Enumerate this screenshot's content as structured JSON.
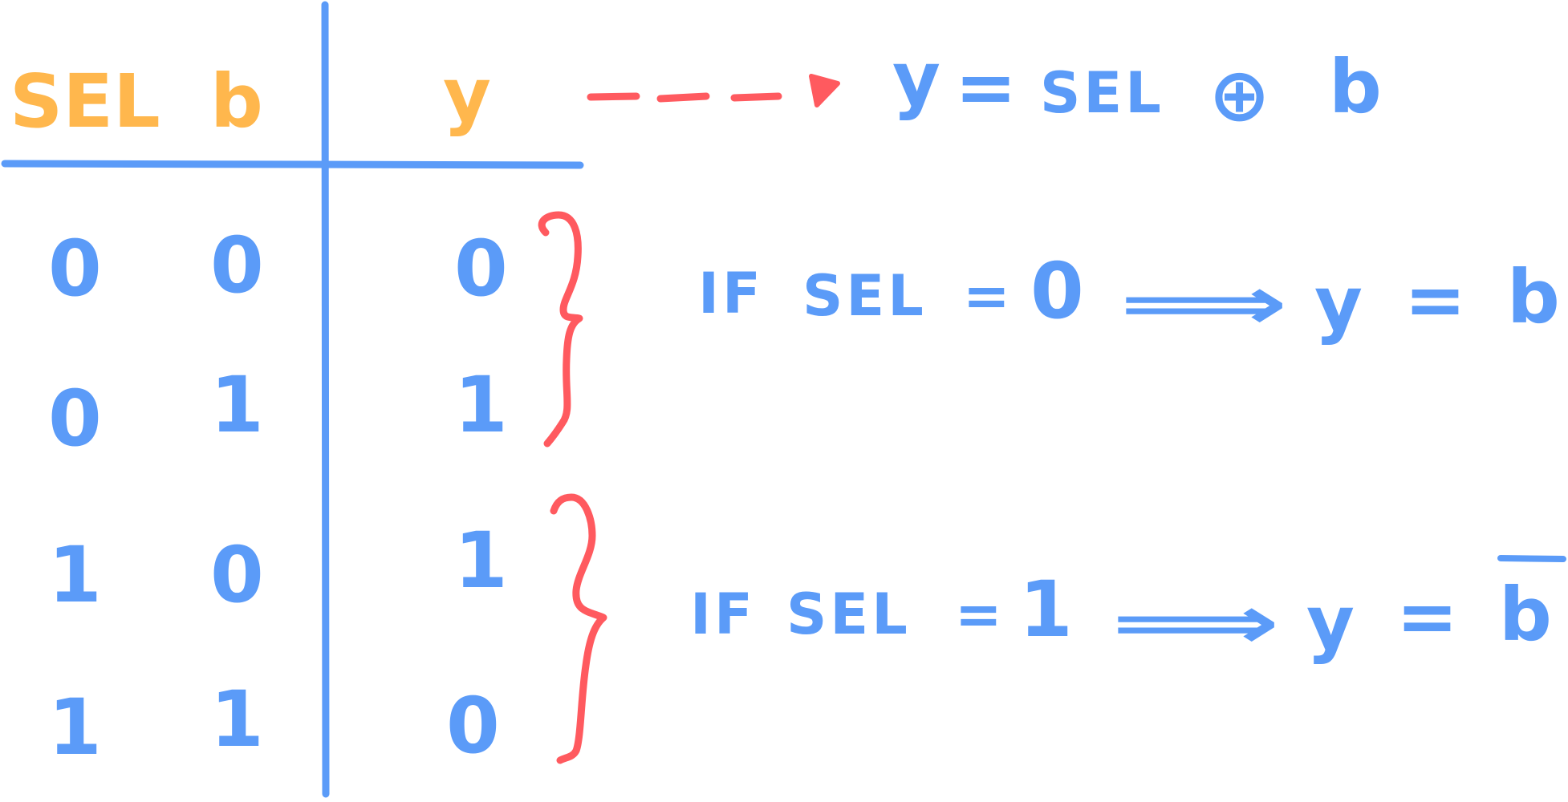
{
  "colors": {
    "header": "#FFB74D",
    "ink": "#5B9BF8",
    "accent": "#FF5A5F",
    "background": "#FFFFFF"
  },
  "table": {
    "headers": {
      "sel": "SEL",
      "b": "b",
      "y": "y"
    },
    "rows": [
      {
        "sel": "0",
        "b": "0",
        "y": "0"
      },
      {
        "sel": "0",
        "b": "1",
        "y": "1"
      },
      {
        "sel": "1",
        "b": "0",
        "y": "1"
      },
      {
        "sel": "1",
        "b": "1",
        "y": "0"
      }
    ]
  },
  "formula": {
    "lhs": "y",
    "eq": "=",
    "sel": "SEL",
    "op": "⊕",
    "rhs": "b"
  },
  "rules": [
    {
      "if_word": "IF",
      "sel": "SEL",
      "eq": "=",
      "value": "0",
      "arrow": "⟹",
      "result_lhs": "y",
      "result_eq": "=",
      "result_rhs": "b",
      "result_negated": false
    },
    {
      "if_word": "IF",
      "sel": "SEL",
      "eq": "=",
      "value": "1",
      "arrow": "⟹",
      "result_lhs": "y",
      "result_eq": "=",
      "result_rhs": "b",
      "result_negated": true
    }
  ]
}
